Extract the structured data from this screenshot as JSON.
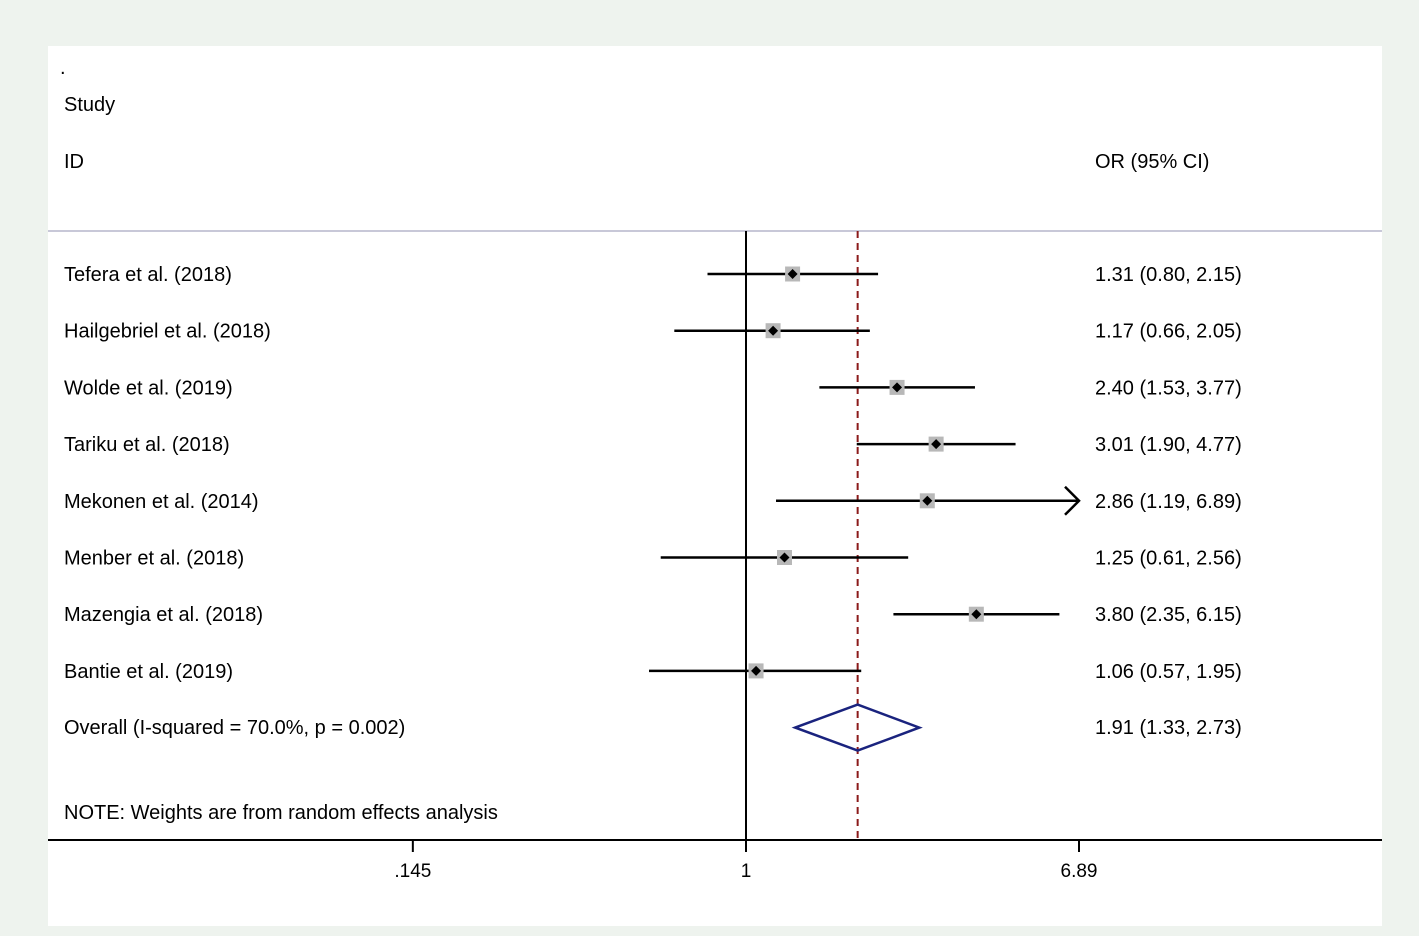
{
  "chart_data": {
    "type": "forest",
    "header": {
      "col1_line1": "Study",
      "col1_line2": "ID",
      "col2": "OR (95% CI)",
      "dot": "."
    },
    "x_scale": "log",
    "x_ticks": [
      {
        "value": 0.145,
        "label": ".145"
      },
      {
        "value": 1,
        "label": "1"
      },
      {
        "value": 6.89,
        "label": "6.89"
      }
    ],
    "null_line": 1,
    "studies": [
      {
        "name": "Tefera et al. (2018)",
        "or": 1.31,
        "lo": 0.8,
        "hi": 2.15,
        "ci_text": "1.31 (0.80, 2.15)"
      },
      {
        "name": "Hailgebriel et al. (2018)",
        "or": 1.17,
        "lo": 0.66,
        "hi": 2.05,
        "ci_text": "1.17 (0.66, 2.05)"
      },
      {
        "name": "Wolde et al. (2019)",
        "or": 2.4,
        "lo": 1.53,
        "hi": 3.77,
        "ci_text": "2.40 (1.53, 3.77)"
      },
      {
        "name": "Tariku et al. (2018)",
        "or": 3.01,
        "lo": 1.9,
        "hi": 4.77,
        "ci_text": "3.01 (1.90, 4.77)"
      },
      {
        "name": "Mekonen et al. (2014)",
        "or": 2.86,
        "lo": 1.19,
        "hi": 6.89,
        "ci_text": "2.86 (1.19, 6.89)",
        "arrow": true
      },
      {
        "name": "Menber et al. (2018)",
        "or": 1.25,
        "lo": 0.61,
        "hi": 2.56,
        "ci_text": "1.25 (0.61, 2.56)"
      },
      {
        "name": "Mazengia et al. (2018)",
        "or": 3.8,
        "lo": 2.35,
        "hi": 6.15,
        "ci_text": "3.80 (2.35, 6.15)"
      },
      {
        "name": "Bantie et al. (2019)",
        "or": 1.06,
        "lo": 0.57,
        "hi": 1.95,
        "ci_text": "1.06 (0.57, 1.95)"
      }
    ],
    "overall": {
      "label": "Overall  (I-squared = 70.0%, p = 0.002)",
      "or": 1.91,
      "lo": 1.33,
      "hi": 2.73,
      "ci_text": "1.91 (1.33, 2.73)"
    },
    "note": "NOTE: Weights are from random effects analysis",
    "colors": {
      "box": "#b8b8b8",
      "diamond": "#1a237e",
      "overall_line": "#8b1a1a",
      "divider": "#c8c8d8",
      "panel": "#ffffff"
    }
  }
}
